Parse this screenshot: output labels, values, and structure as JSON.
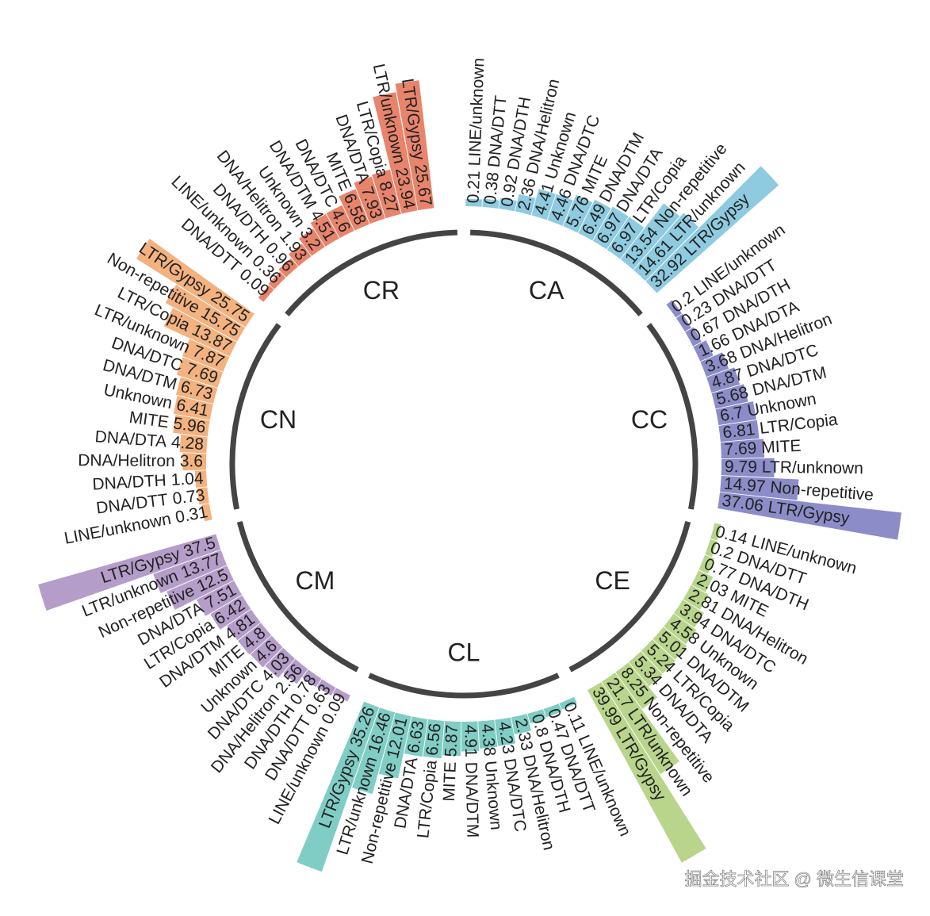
{
  "chart_data": {
    "type": "radial_bar",
    "groups": [
      {
        "name": "CA",
        "color": "#8ecbe0",
        "categories": [
          "LINE/unknown",
          "DNA/DTT",
          "DNA/DTH",
          "DNA/Helitron",
          "Unknown",
          "DNA/DTC",
          "MITE",
          "DNA/DTM",
          "DNA/DTA",
          "LTR/Copia",
          "Non-repetitive",
          "LTR/unknown",
          "LTR/Gypsy"
        ],
        "values": [
          0.21,
          0.38,
          0.92,
          2.36,
          4.41,
          4.46,
          5.76,
          6.49,
          6.97,
          6.97,
          13.54,
          14.61,
          32.92
        ]
      },
      {
        "name": "CC",
        "color": "#8c8cc9",
        "categories": [
          "LINE/unknown",
          "DNA/DTT",
          "DNA/DTH",
          "DNA/DTA",
          "DNA/Helitron",
          "DNA/DTC",
          "DNA/DTM",
          "Unknown",
          "LTR/Copia",
          "MITE",
          "LTR/unknown",
          "Non-repetitive",
          "LTR/Gypsy"
        ],
        "values": [
          0.2,
          0.23,
          0.67,
          1.66,
          3.68,
          4.87,
          5.68,
          6.7,
          6.81,
          7.69,
          9.79,
          14.97,
          37.06
        ]
      },
      {
        "name": "CE",
        "color": "#b8d58b",
        "categories": [
          "LINE/unknown",
          "DNA/DTT",
          "DNA/DTH",
          "MITE",
          "DNA/Helitron",
          "DNA/DTC",
          "Unknown",
          "DNA/DTM",
          "LTR/Copia",
          "DNA/DTA",
          "Non-repetitive",
          "LTR/unknown",
          "LTR/Gypsy"
        ],
        "values": [
          0.14,
          0.2,
          0.77,
          2.03,
          2.81,
          3.94,
          4.58,
          5.01,
          5.24,
          5.34,
          8.25,
          21.7,
          39.99
        ]
      },
      {
        "name": "CL",
        "color": "#80cdc5",
        "categories": [
          "LINE/unknown",
          "DNA/DTT",
          "DNA/DTH",
          "DNA/Helitron",
          "DNA/DTC",
          "Unknown",
          "DNA/DTM",
          "MITE",
          "LTR/Copia",
          "DNA/DTA",
          "Non-repetitive",
          "LTR/unknown",
          "LTR/Gypsy"
        ],
        "values": [
          0.11,
          0.47,
          0.8,
          2.33,
          4.23,
          4.38,
          4.91,
          5.87,
          6.56,
          6.63,
          12.01,
          16.46,
          35.26
        ]
      },
      {
        "name": "CM",
        "color": "#b59dca",
        "categories": [
          "LINE/unknown",
          "DNA/DTT",
          "DNA/DTH",
          "DNA/Helitron",
          "DNA/DTC",
          "Unknown",
          "MITE",
          "DNA/DTM",
          "LTR/Copia",
          "DNA/DTA",
          "Non-repetitive",
          "LTR/unknown",
          "LTR/Gypsy"
        ],
        "values": [
          0.09,
          0.63,
          0.78,
          2.56,
          4.03,
          4.6,
          4.8,
          4.81,
          6.42,
          7.51,
          12.5,
          13.77,
          37.5
        ]
      },
      {
        "name": "CN",
        "color": "#f3b27f",
        "categories": [
          "LINE/unknown",
          "DNA/DTT",
          "DNA/DTH",
          "DNA/Helitron",
          "DNA/DTA",
          "MITE",
          "Unknown",
          "DNA/DTM",
          "DNA/DTC",
          "LTR/unknown",
          "LTR/Copia",
          "Non-repetitive",
          "LTR/Gypsy"
        ],
        "values": [
          0.31,
          0.73,
          1.04,
          3.6,
          4.28,
          5.96,
          6.41,
          6.73,
          7.69,
          7.87,
          13.87,
          15.75,
          25.75
        ]
      },
      {
        "name": "CR",
        "color": "#e8846c",
        "categories": [
          "DNA/DTT",
          "LINE/unknown",
          "DNA/DTH",
          "DNA/Helitron",
          "Unknown",
          "DNA/DTM",
          "DNA/DTC",
          "MITE",
          "DNA/DTA",
          "LTR/Copia",
          "LTR/unknown",
          "LTR/Gypsy"
        ],
        "values": [
          0.09,
          0.36,
          0.96,
          1.93,
          3.2,
          4.51,
          4.6,
          6.58,
          7.93,
          8.27,
          23.94,
          25.67
        ]
      }
    ]
  },
  "watermark": "掘金技术社区 @ 微生信课堂"
}
